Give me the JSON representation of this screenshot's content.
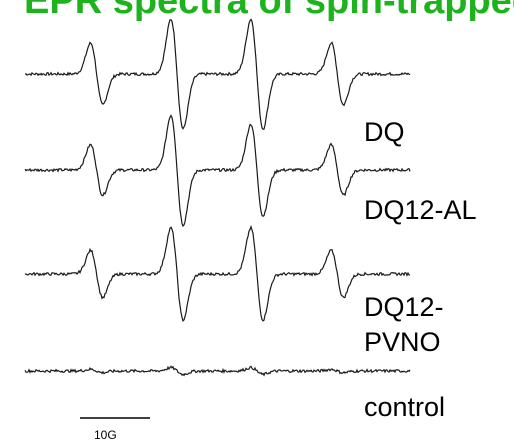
{
  "title": "EPR spectra of spin-trapped adducts",
  "colors": {
    "title": "#1db31d",
    "trace": "#1a1a1a",
    "text": "#000000"
  },
  "chart_data": {
    "type": "line",
    "title": "",
    "xlabel": "",
    "ylabel": "",
    "grid": false,
    "legend": "none",
    "x_unit": "G",
    "scale_bar": {
      "length_g": 10,
      "label": "10G"
    },
    "line_centers_g": [
      -23.5,
      -7.8,
      7.8,
      23.5
    ],
    "series": [
      {
        "name": "DQ",
        "amplitudes": [
          0.55,
          0.98,
          0.98,
          0.55
        ],
        "linewidth_g": 1.2
      },
      {
        "name": "DQ12-AL",
        "amplitudes": [
          0.45,
          0.98,
          0.82,
          0.45
        ],
        "linewidth_g": 1.2
      },
      {
        "name": "DQ12-PVNO",
        "amplitudes": [
          0.42,
          0.82,
          0.82,
          0.42
        ],
        "linewidth_g": 1.2
      },
      {
        "name": "control",
        "amplitudes": [
          0.03,
          0.06,
          0.06,
          0.03
        ],
        "linewidth_g": 1.2
      }
    ]
  },
  "labels": {
    "dq": "DQ",
    "dq12_al": "DQ12-AL",
    "dq12_pvno_line1": "DQ12-",
    "dq12_pvno_line2": "PVNO",
    "control": "control"
  },
  "scale_bar_label": "10G"
}
